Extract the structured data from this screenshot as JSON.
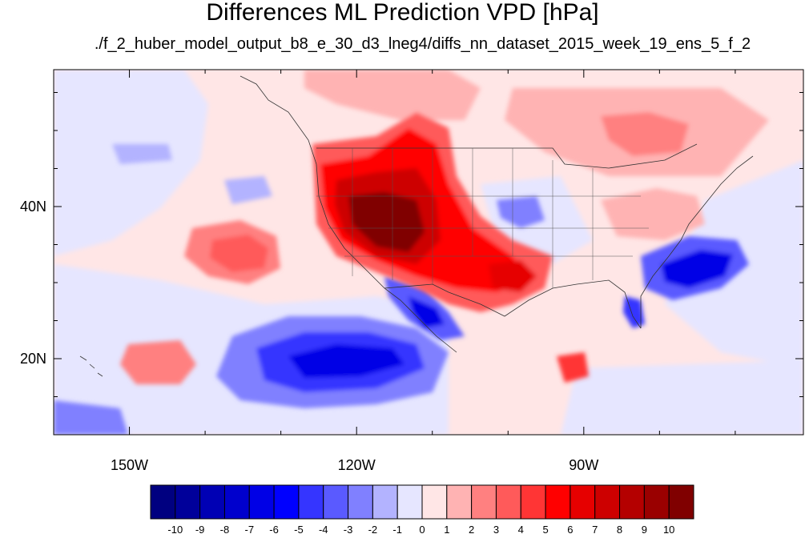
{
  "title": "Differences ML Prediction VPD [hPa]",
  "subtitle": "./f_2_huber_model_output_b8_e_30_d3_lneg4/diffs_nn_dataset_2015_week_19_ens_5_f_2",
  "map": {
    "lon_range": [
      -160,
      -61
    ],
    "lat_range": [
      10,
      58
    ],
    "x_ticks": [
      {
        "value": -150,
        "label": "150W"
      },
      {
        "value": -120,
        "label": "120W"
      },
      {
        "value": -90,
        "label": "90W"
      }
    ],
    "y_ticks": [
      {
        "value": 20,
        "label": "20N"
      },
      {
        "value": 40,
        "label": "40N"
      }
    ],
    "minor_x_ticks": [
      -160,
      -140,
      -130,
      -110,
      -100,
      -80,
      -70
    ],
    "minor_y_ticks": [
      15,
      25,
      30,
      35,
      45,
      50,
      55
    ]
  },
  "colorbar": {
    "labels": [
      "-10",
      "-9",
      "-8",
      "-7",
      "-6",
      "-5",
      "-4",
      "-3",
      "-2",
      "-1",
      "0",
      "1",
      "2",
      "3",
      "4",
      "5",
      "6",
      "7",
      "8",
      "9",
      "10"
    ],
    "colors": [
      "#000080",
      "#00009a",
      "#0000b4",
      "#0000cd",
      "#0000e6",
      "#0000ff",
      "#3535ff",
      "#5a5aff",
      "#8080ff",
      "#b3b3ff",
      "#e6e6ff",
      "#ffe6e6",
      "#ffb3b3",
      "#ff8080",
      "#ff5a5a",
      "#ff3535",
      "#ff0000",
      "#e60000",
      "#cd0000",
      "#b40000",
      "#9a0000",
      "#800000"
    ]
  }
}
